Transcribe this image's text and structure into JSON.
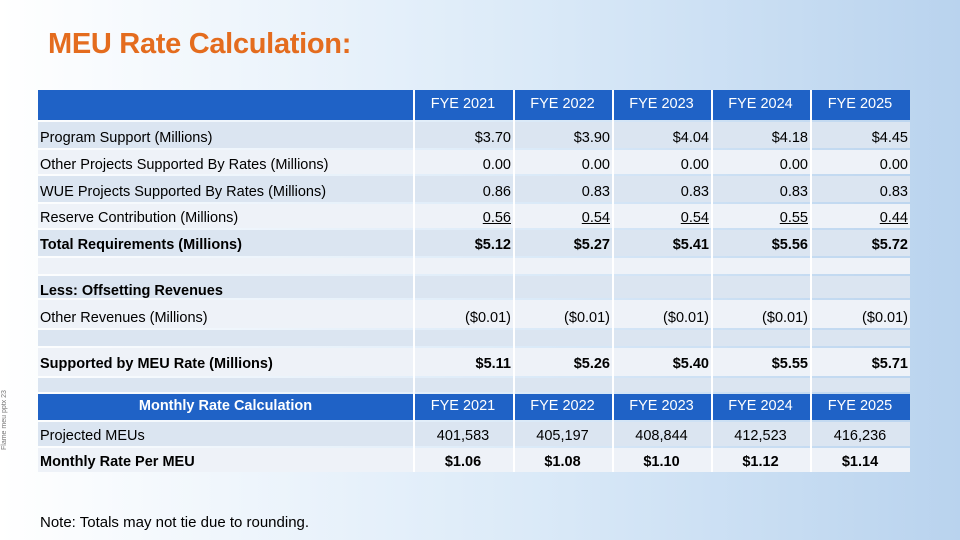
{
  "title": "MEU Rate Calculation:",
  "side_note": "Flame meu pptx 23",
  "table": {
    "years": [
      "FYE 2021",
      "FYE 2022",
      "FYE 2023",
      "FYE 2024",
      "FYE 2025"
    ],
    "rows": [
      {
        "label": "Program Support (Millions)",
        "values": [
          "$3.70",
          "$3.90",
          "$4.04",
          "$4.18",
          "$4.45"
        ]
      },
      {
        "label": "Other Projects Supported By Rates (Millions)",
        "values": [
          "0.00",
          "0.00",
          "0.00",
          "0.00",
          "0.00"
        ]
      },
      {
        "label": "WUE Projects Supported By Rates (Millions)",
        "values": [
          "0.86",
          "0.83",
          "0.83",
          "0.83",
          "0.83"
        ]
      },
      {
        "label": "Reserve Contribution (Millions)",
        "values": [
          "0.56",
          "0.54",
          "0.54",
          "0.55",
          "0.44"
        ]
      },
      {
        "label": "Total Requirements (Millions)",
        "values": [
          "$5.12",
          "$5.27",
          "$5.41",
          "$5.56",
          "$5.72"
        ]
      }
    ],
    "offset_heading": "Less: Offsetting Revenues",
    "other_revenues": {
      "label": "Other Revenues (Millions)",
      "values": [
        "($0.01)",
        "($0.01)",
        "($0.01)",
        "($0.01)",
        "($0.01)"
      ]
    },
    "supported": {
      "label": "Supported by MEU Rate (Millions)",
      "values": [
        "$5.11",
        "$5.26",
        "$5.40",
        "$5.55",
        "$5.71"
      ]
    },
    "monthly_heading": "Monthly Rate Calculation",
    "projected": {
      "label": "Projected MEUs",
      "values": [
        "401,583",
        "405,197",
        "408,844",
        "412,523",
        "416,236"
      ]
    },
    "monthly_rate": {
      "label": "Monthly Rate Per MEU",
      "values": [
        "$1.06",
        "$1.08",
        "$1.10",
        "$1.12",
        "$1.14"
      ]
    }
  },
  "note": "Note: Totals may not tie due to rounding.",
  "colors": {
    "title": "#e46c1e",
    "header_blue": "#1f62c6",
    "band_light": "#dbe5f1"
  }
}
